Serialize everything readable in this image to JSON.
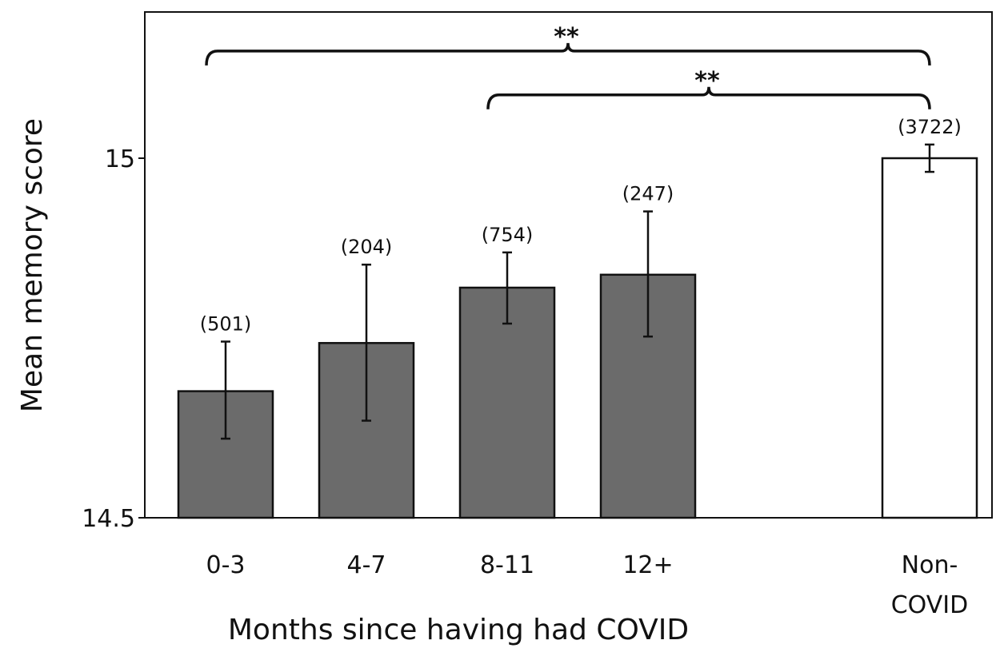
{
  "chart_data": {
    "type": "bar",
    "title": "",
    "xlabel": "Months since having had COVID",
    "ylabel": "Mean memory score",
    "ylim": [
      14.5,
      15.2
    ],
    "yticks": [
      {
        "value": 14.5,
        "label": "14.5"
      },
      {
        "value": 15,
        "label": "15"
      }
    ],
    "grid": false,
    "legend": "none",
    "categories": [
      {
        "key": "0-3",
        "lines": [
          "0-3"
        ]
      },
      {
        "key": "4-7",
        "lines": [
          "4-7"
        ]
      },
      {
        "key": "8-11",
        "lines": [
          "8-11"
        ]
      },
      {
        "key": "12+",
        "lines": [
          "12+"
        ]
      },
      {
        "key": "Non-COVID",
        "lines": [
          "Non-",
          "COVID"
        ]
      }
    ],
    "slots": [
      0,
      1,
      2,
      3,
      5
    ],
    "values": [
      14.676,
      14.743,
      14.82,
      14.838,
      15.0
    ],
    "error_low": [
      14.61,
      14.635,
      14.77,
      14.752,
      14.981
    ],
    "error_high": [
      14.745,
      14.852,
      14.869,
      14.926,
      15.019
    ],
    "n_labels": [
      "(501)",
      "(204)",
      "(754)",
      "(247)",
      "(3722)"
    ],
    "bar_colors": [
      "#6b6b6b",
      "#6b6b6b",
      "#6b6b6b",
      "#6b6b6b",
      "#ffffff"
    ],
    "significance": [
      {
        "from": "0-3",
        "to": "Non-COVID",
        "label": "**",
        "y": 15.149
      },
      {
        "from": "8-11",
        "to": "Non-COVID",
        "label": "**",
        "y": 15.088
      }
    ]
  }
}
